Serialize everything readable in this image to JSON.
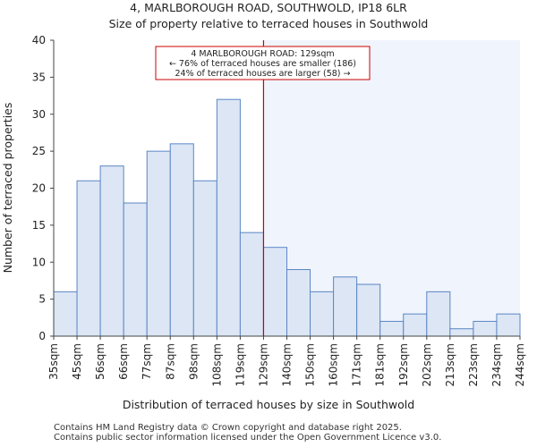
{
  "chart_data": {
    "type": "bar",
    "title": "4, MARLBOROUGH ROAD, SOUTHWOLD, IP18 6LR",
    "subtitle": "Size of property relative to terraced houses in Southwold",
    "xlabel": "Distribution of terraced houses by size in Southwold",
    "ylabel": "Number of terraced properties",
    "ylim": [
      0,
      40
    ],
    "yticks": [
      0,
      5,
      10,
      15,
      20,
      25,
      30,
      35,
      40
    ],
    "bin_edges": [
      "35sqm",
      "45sqm",
      "56sqm",
      "66sqm",
      "77sqm",
      "87sqm",
      "98sqm",
      "108sqm",
      "119sqm",
      "129sqm",
      "140sqm",
      "150sqm",
      "160sqm",
      "171sqm",
      "181sqm",
      "192sqm",
      "202sqm",
      "213sqm",
      "223sqm",
      "234sqm",
      "244sqm"
    ],
    "values": [
      6,
      21,
      23,
      18,
      25,
      26,
      21,
      32,
      14,
      12,
      9,
      6,
      8,
      7,
      2,
      3,
      6,
      1,
      2,
      3
    ],
    "marker": {
      "bin_index": 9,
      "value_label": "129sqm",
      "line_color": "#cc0000"
    },
    "annotation": {
      "lines": [
        "4 MARLBOROUGH ROAD: 129sqm",
        "← 76% of terraced houses are smaller (186)",
        "24% of terraced houses are larger (58) →"
      ],
      "border_color": "#cc0000"
    },
    "colors": {
      "bar_fill": "#dce6f5",
      "bar_stroke": "#5b86c5",
      "highlight_region": "#f0f4fc"
    }
  },
  "footer": {
    "line1": "Contains HM Land Registry data © Crown copyright and database right 2025.",
    "line2": "Contains public sector information licensed under the Open Government Licence v3.0."
  }
}
